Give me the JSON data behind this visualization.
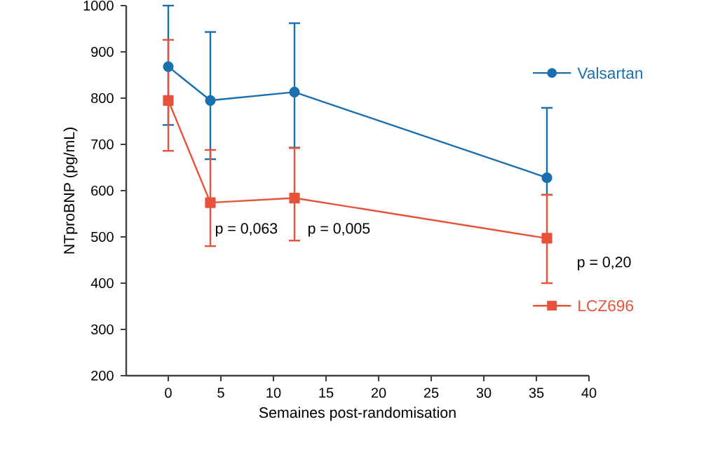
{
  "chart_data": {
    "type": "line",
    "xlabel": "Semaines post-randomisation",
    "ylabel": "NTproBNP (pg/mL)",
    "x": [
      0,
      4,
      12,
      36
    ],
    "series": [
      {
        "name": "Valsartan",
        "color": "#1a6faf",
        "marker": "circle",
        "values": [
          868,
          795,
          813,
          628
        ],
        "errors": [
          [
            742,
            1000
          ],
          [
            668,
            943
          ],
          [
            693,
            962
          ],
          [
            591,
            779
          ]
        ]
      },
      {
        "name": "LCZ696",
        "color": "#e8523a",
        "marker": "square",
        "values": [
          795,
          574,
          584,
          497
        ],
        "errors": [
          [
            686,
            926
          ],
          [
            480,
            688
          ],
          [
            492,
            692
          ],
          [
            400,
            591
          ]
        ]
      }
    ],
    "xlim": [
      -4,
      40
    ],
    "xticks": [
      0,
      5,
      10,
      15,
      20,
      25,
      30,
      35,
      40
    ],
    "ylim": [
      200,
      1000
    ],
    "yticks": [
      200,
      300,
      400,
      500,
      600,
      700,
      800,
      900,
      1000
    ],
    "grid": false,
    "legend": "right",
    "line_style": "solid",
    "annotations": [
      "p = 0,063",
      "p = 0,005",
      "p = 0,20"
    ]
  }
}
